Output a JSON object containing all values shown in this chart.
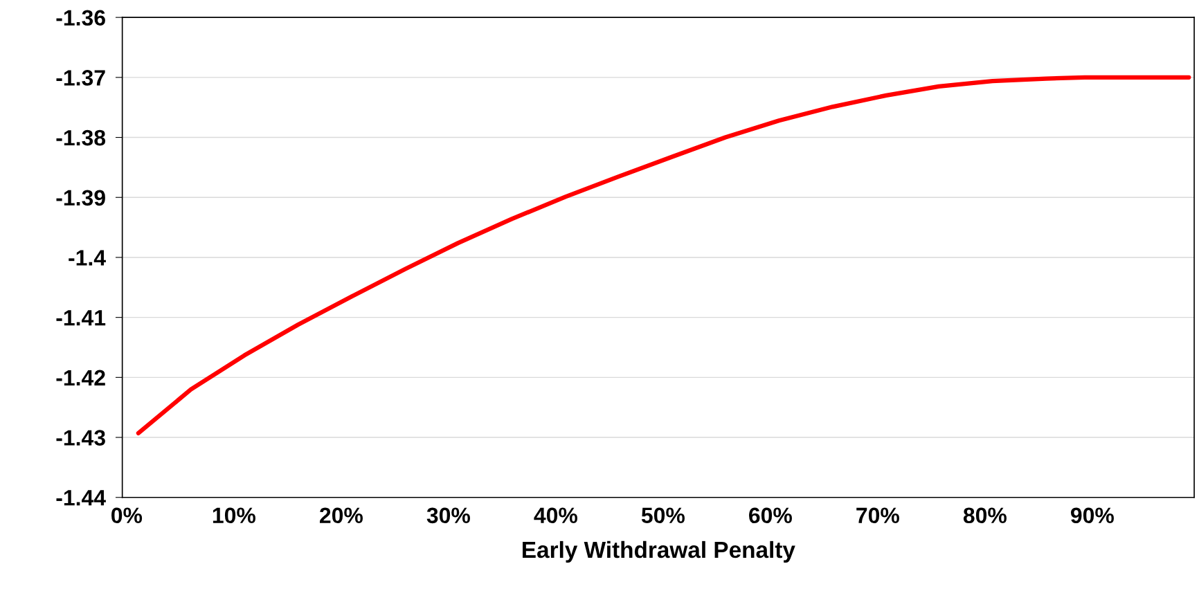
{
  "chart_data": {
    "type": "line",
    "xlabel": "Early Withdrawal Penalty",
    "x": [
      1.1,
      6.0,
      11.0,
      16.0,
      21.0,
      26.0,
      30.9,
      35.9,
      40.9,
      45.9,
      50.9,
      55.8,
      60.8,
      65.8,
      70.8,
      75.7,
      80.7,
      85.7,
      89.3,
      99.0
    ],
    "series": [
      {
        "color": "#ff0000",
        "values": [
          -1.4293,
          -1.422,
          -1.4163,
          -1.4112,
          -1.4065,
          -1.4019,
          -1.3976,
          -1.3936,
          -1.3899,
          -1.3865,
          -1.3832,
          -1.38,
          -1.3772,
          -1.3749,
          -1.373,
          -1.3715,
          -1.3706,
          -1.3702,
          -1.37,
          -1.37
        ]
      }
    ],
    "xlim": [
      -0.4,
      99.5
    ],
    "xticks": [
      {
        "value": 0,
        "label": "0%"
      },
      {
        "value": 10,
        "label": "10%"
      },
      {
        "value": 20,
        "label": "20%"
      },
      {
        "value": 30,
        "label": "30%"
      },
      {
        "value": 40,
        "label": "40%"
      },
      {
        "value": 50,
        "label": "50%"
      },
      {
        "value": 60,
        "label": "60%"
      },
      {
        "value": 70,
        "label": "70%"
      },
      {
        "value": 80,
        "label": "80%"
      },
      {
        "value": 90,
        "label": "90%"
      }
    ],
    "ylim": [
      -1.44,
      -1.36
    ],
    "yticks": [
      -1.44,
      -1.43,
      -1.42,
      -1.41,
      -1.4,
      -1.39,
      -1.38,
      -1.37,
      -1.36
    ],
    "grid": "y",
    "marker": "none",
    "line_style": "solid",
    "legend": false
  }
}
